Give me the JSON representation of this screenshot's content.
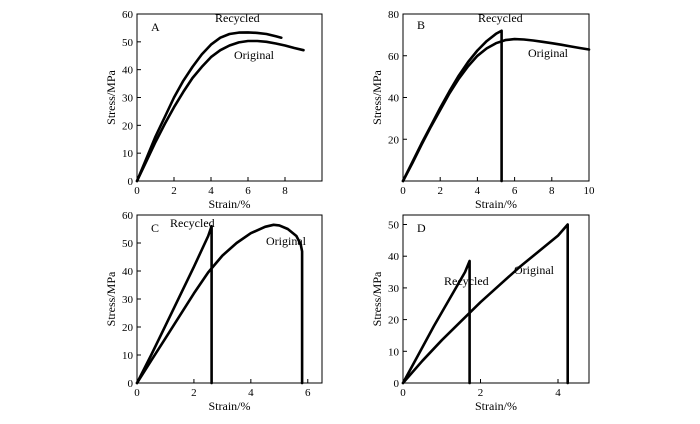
{
  "chart_data": [
    {
      "type": "line",
      "panel_label": "A",
      "xlabel": "Strain/%",
      "ylabel": "Stress/MPa",
      "xlim": [
        0,
        10
      ],
      "ylim": [
        0,
        60
      ],
      "xticks": [
        0,
        2,
        4,
        6,
        8
      ],
      "yticks": [
        0,
        10,
        20,
        30,
        40,
        50,
        60
      ],
      "grid": false,
      "series": [
        {
          "name": "Recycled",
          "x": [
            0,
            0.5,
            1,
            1.5,
            2,
            2.5,
            3,
            3.5,
            4,
            4.5,
            5,
            5.5,
            6,
            6.5,
            7,
            7.5,
            7.8
          ],
          "y": [
            0,
            8,
            16,
            23,
            30,
            36,
            41,
            45.5,
            49,
            51.5,
            52.8,
            53.3,
            53.4,
            53.2,
            52.8,
            52,
            51.5
          ]
        },
        {
          "name": "Original",
          "x": [
            0,
            0.5,
            1,
            1.5,
            2,
            2.5,
            3,
            3.5,
            4,
            4.5,
            5,
            5.5,
            6,
            6.5,
            7,
            7.5,
            8,
            8.5,
            9
          ],
          "y": [
            0,
            7,
            14,
            20.5,
            26.5,
            32,
            37,
            41,
            44.5,
            47,
            48.7,
            49.8,
            50.3,
            50.3,
            50,
            49.4,
            48.7,
            47.8,
            47
          ]
        }
      ]
    },
    {
      "type": "line",
      "panel_label": "B",
      "xlabel": "Strain/%",
      "ylabel": "Stress/MPa",
      "xlim": [
        0,
        10
      ],
      "ylim": [
        0,
        80
      ],
      "xticks": [
        0,
        2,
        4,
        6,
        8,
        10
      ],
      "yticks": [
        20,
        40,
        60,
        80
      ],
      "grid": false,
      "series": [
        {
          "name": "Recycled",
          "x": [
            0,
            0.5,
            1,
            1.5,
            2,
            2.5,
            3,
            3.5,
            4,
            4.5,
            5,
            5.3,
            5.3
          ],
          "y": [
            0,
            9,
            18,
            26.5,
            35,
            43,
            50.5,
            57,
            62.5,
            67,
            70.5,
            72,
            0
          ]
        },
        {
          "name": "Original",
          "x": [
            0,
            0.5,
            1,
            1.5,
            2,
            2.5,
            3,
            3.5,
            4,
            4.5,
            5,
            5.5,
            6,
            6.5,
            7,
            7.5,
            8,
            8.5,
            9,
            9.5,
            10
          ],
          "y": [
            0,
            8.5,
            17.5,
            26,
            34,
            42,
            49,
            55,
            60,
            63.5,
            66,
            67.5,
            68,
            67.8,
            67.3,
            66.7,
            66,
            65.3,
            64.5,
            63.7,
            63
          ]
        }
      ]
    },
    {
      "type": "line",
      "panel_label": "C",
      "xlabel": "Strain/%",
      "ylabel": "Stress/MPa",
      "xlim": [
        0,
        6.5
      ],
      "ylim": [
        0,
        60
      ],
      "xticks": [
        0,
        2,
        4,
        6
      ],
      "yticks": [
        0,
        10,
        20,
        30,
        40,
        50,
        60
      ],
      "grid": false,
      "series": [
        {
          "name": "Recycled",
          "x": [
            0,
            0.5,
            1,
            1.5,
            2,
            2.5,
            2.62,
            2.62
          ],
          "y": [
            0,
            10,
            20.5,
            31,
            41.5,
            52.5,
            56,
            0
          ]
        },
        {
          "name": "Original",
          "x": [
            0,
            0.5,
            1,
            1.5,
            2,
            2.5,
            3,
            3.5,
            4,
            4.5,
            4.8,
            5,
            5.3,
            5.6,
            5.75,
            5.8,
            5.8
          ],
          "y": [
            0,
            8,
            16,
            24,
            32,
            39.5,
            45.5,
            50,
            53.5,
            55.8,
            56.5,
            56.3,
            55,
            52.5,
            49.5,
            47,
            0
          ]
        }
      ]
    },
    {
      "type": "line",
      "panel_label": "D",
      "xlabel": "Strain/%",
      "ylabel": "Stress/MPa",
      "xlim": [
        0,
        4.8
      ],
      "ylim": [
        0,
        53
      ],
      "xticks": [
        0,
        2,
        4
      ],
      "yticks": [
        0,
        10,
        20,
        30,
        40,
        50
      ],
      "grid": false,
      "series": [
        {
          "name": "Recycled",
          "x": [
            0,
            0.4,
            0.8,
            1.2,
            1.6,
            1.72,
            1.72
          ],
          "y": [
            0,
            9,
            18,
            26.5,
            35,
            38.5,
            0
          ]
        },
        {
          "name": "Original",
          "x": [
            0,
            0.5,
            1,
            1.5,
            2,
            2.5,
            3,
            3.5,
            4,
            4.25,
            4.25
          ],
          "y": [
            0,
            7,
            13.5,
            19.5,
            25.5,
            31,
            36.5,
            41.5,
            46.5,
            50,
            0
          ]
        }
      ]
    }
  ]
}
